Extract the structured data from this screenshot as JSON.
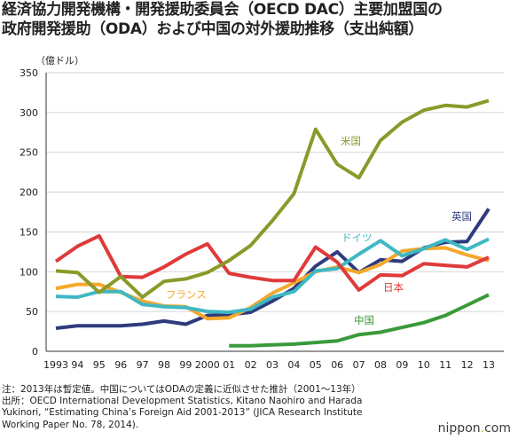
{
  "title_lines": [
    "経済協力開発機構・開発援助委員会（OECD DAC）主要加盟国の",
    "政府開発援助（ODA）および中国の対外援助推移（支出純額）"
  ],
  "notes": [
    "注：2013年は暫定値。中国についてはODAの定義に近似させた推計（2001～13年）",
    "出所：OECD International Development Statistics, Kitano Naohiro and Harada",
    "Yukinori, “Estimating China’s Foreign Aid 2001-2013” (JICA Research Institute",
    "Working Paper No. 78, 2014)."
  ],
  "brand": {
    "prefix": "nippon",
    "dot": ".",
    "suffix": "com"
  },
  "chart_data": {
    "type": "line",
    "ylabel": "（億ドル）",
    "ylim": [
      0,
      350
    ],
    "yticks": [
      0,
      50,
      100,
      150,
      200,
      250,
      300,
      350
    ],
    "categories": [
      "1993",
      "94",
      "95",
      "96",
      "97",
      "98",
      "99",
      "2000",
      "01",
      "02",
      "03",
      "04",
      "05",
      "06",
      "07",
      "08",
      "09",
      "10",
      "11",
      "12",
      "13"
    ],
    "grid": true,
    "series": [
      {
        "name": "米国",
        "color": "#8a9a2a",
        "values": [
          101,
          99,
          74,
          94,
          68,
          88,
          91,
          99,
          114,
          133,
          164,
          198,
          279,
          235,
          218,
          265,
          288,
          303,
          309,
          307,
          315
        ]
      },
      {
        "name": "英国",
        "color": "#2e3b7d",
        "values": [
          29,
          32,
          32,
          32,
          34,
          38,
          34,
          45,
          46,
          49,
          63,
          79,
          107,
          125,
          99,
          115,
          113,
          130,
          137,
          138,
          179
        ]
      },
      {
        "name": "ドイツ",
        "color": "#3fb8c4",
        "values": [
          69,
          68,
          75,
          75,
          59,
          56,
          55,
          50,
          49,
          53,
          68,
          75,
          101,
          104,
          122,
          139,
          120,
          129,
          140,
          128,
          141
        ]
      },
      {
        "name": "フランス",
        "color": "#f5a82b",
        "values": [
          79,
          84,
          84,
          74,
          63,
          57,
          56,
          41,
          42,
          55,
          73,
          86,
          100,
          106,
          99,
          109,
          126,
          129,
          130,
          121,
          114
        ]
      },
      {
        "name": "日本",
        "color": "#e03a3a",
        "values": [
          113,
          132,
          145,
          94,
          93,
          106,
          122,
          135,
          98,
          93,
          89,
          89,
          131,
          112,
          77,
          96,
          95,
          110,
          108,
          106,
          118
        ]
      },
      {
        "name": "中国",
        "color": "#3a9a3a",
        "values": [
          null,
          null,
          null,
          null,
          null,
          null,
          null,
          null,
          7,
          7,
          8,
          9,
          11,
          13,
          21,
          24,
          30,
          36,
          45,
          58,
          71
        ]
      }
    ]
  }
}
